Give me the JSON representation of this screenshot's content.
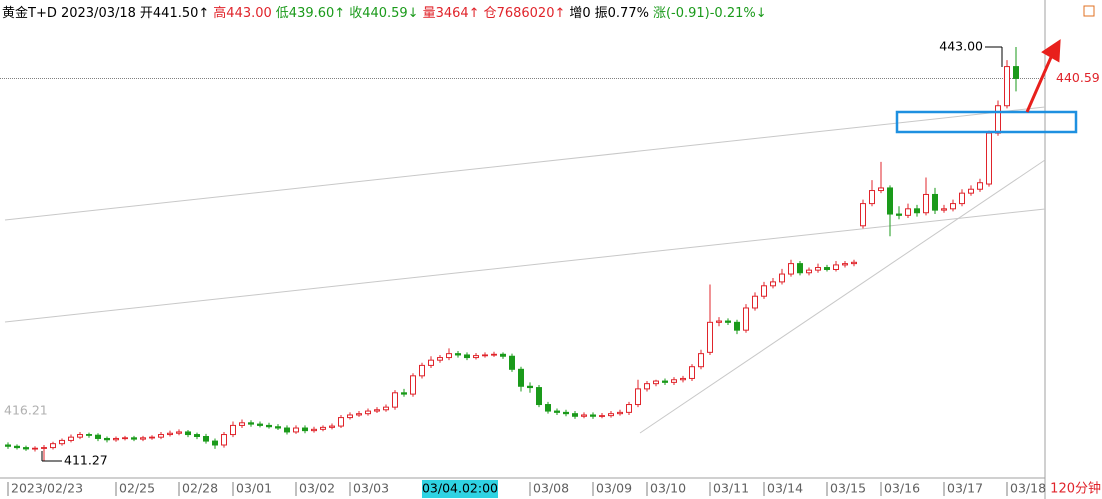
{
  "chart_data": {
    "type": "candlestick",
    "header": [
      {
        "text": "黄金T+D 2023/03/18",
        "color": "#000000"
      },
      {
        "text": "开441.50↑",
        "color": "#000000"
      },
      {
        "text": "高443.00",
        "color": "#e0242b"
      },
      {
        "text": "低439.60↑",
        "color": "#1a9a1a"
      },
      {
        "text": "收440.59↓",
        "color": "#1a9a1a"
      },
      {
        "text": "量3464↑",
        "color": "#e0242b"
      },
      {
        "text": "仓7686020↑",
        "color": "#e0242b"
      },
      {
        "text": "增0",
        "color": "#000000"
      },
      {
        "text": "振0.77%",
        "color": "#000000"
      },
      {
        "text": "涨(-0.91)-0.21%↓",
        "color": "#1a9a1a"
      }
    ],
    "period": "120分钟",
    "left_label": "416.21",
    "max_label": {
      "value": 443,
      "label": "443.00"
    },
    "min_label": 411.27,
    "ylim": [
      409.97,
      446.22
    ],
    "up_color": "#e0242b",
    "down_color": "#1a9a1a",
    "categories": [
      "2023/02/23",
      null,
      null,
      null,
      null,
      null,
      null,
      null,
      null,
      null,
      null,
      null,
      "02/25",
      null,
      null,
      null,
      null,
      null,
      null,
      "02/28",
      null,
      null,
      null,
      null,
      null,
      "03/01",
      null,
      null,
      null,
      null,
      null,
      null,
      "03/02",
      null,
      null,
      null,
      null,
      null,
      "03/03",
      null,
      null,
      null,
      null,
      null,
      null,
      null,
      null,
      null,
      null,
      null,
      "03/04.02:00",
      null,
      null,
      null,
      null,
      null,
      null,
      null,
      "03/08",
      null,
      null,
      null,
      null,
      null,
      null,
      "03/09",
      null,
      null,
      null,
      null,
      null,
      "03/10",
      null,
      null,
      null,
      null,
      null,
      null,
      "03/11",
      null,
      null,
      null,
      null,
      null,
      "03/14",
      null,
      null,
      null,
      null,
      null,
      null,
      "03/15",
      null,
      null,
      null,
      null,
      null,
      "03/16",
      null,
      null,
      null,
      null,
      null,
      null,
      "03/17",
      null,
      null,
      null,
      null,
      null,
      null,
      "03/18",
      null
    ],
    "open": [
      412.5,
      412.4,
      412.3,
      412.2,
      412.25,
      412.3,
      412.6,
      412.85,
      413.1,
      413.3,
      413.25,
      413.0,
      412.9,
      413.0,
      413.05,
      412.95,
      413.05,
      413.1,
      413.3,
      413.4,
      413.5,
      413.3,
      413.15,
      412.8,
      412.5,
      413.3,
      414.0,
      414.2,
      414.1,
      414.0,
      413.9,
      413.8,
      413.5,
      413.8,
      413.6,
      413.7,
      413.85,
      413.95,
      414.6,
      414.8,
      414.9,
      415.1,
      415.2,
      415.4,
      416.5,
      416.4,
      417.8,
      418.6,
      419.0,
      419.2,
      419.5,
      419.4,
      419.2,
      419.35,
      419.4,
      419.45,
      419.3,
      418.3,
      417.0,
      416.9,
      415.6,
      415.1,
      415.0,
      414.9,
      414.7,
      414.8,
      414.7,
      414.75,
      414.9,
      415.0,
      415.6,
      416.8,
      417.2,
      417.4,
      417.3,
      417.5,
      417.6,
      418.5,
      419.6,
      421.9,
      422.0,
      421.9,
      421.3,
      423.0,
      423.9,
      424.7,
      425.0,
      425.6,
      426.4,
      425.7,
      425.9,
      426.1,
      425.95,
      426.3,
      426.4,
      429.3,
      431.0,
      432.0,
      432.2,
      430.2,
      430.1,
      430.6,
      430.3,
      431.7,
      430.5,
      430.6,
      431.0,
      431.8,
      432.1,
      432.5,
      436.4,
      438.5,
      441.5
    ],
    "high": [
      412.7,
      412.55,
      412.45,
      412.4,
      412.5,
      412.75,
      413.0,
      413.3,
      413.5,
      413.45,
      413.4,
      413.15,
      413.15,
      413.2,
      413.2,
      413.2,
      413.25,
      413.5,
      413.6,
      413.7,
      413.65,
      413.45,
      413.35,
      413.0,
      413.5,
      414.3,
      414.45,
      414.4,
      414.3,
      414.2,
      414.1,
      414.0,
      414.0,
      414.0,
      413.9,
      414.0,
      414.15,
      414.8,
      415.0,
      415.1,
      415.3,
      415.4,
      415.6,
      416.7,
      416.8,
      418.0,
      418.8,
      419.3,
      419.4,
      419.9,
      419.7,
      419.6,
      419.55,
      419.6,
      419.65,
      419.6,
      419.5,
      418.5,
      417.3,
      417.1,
      415.8,
      415.3,
      415.2,
      415.1,
      415.0,
      415.0,
      414.95,
      415.1,
      415.2,
      415.8,
      417.5,
      417.4,
      417.5,
      417.6,
      417.7,
      417.8,
      418.7,
      419.8,
      424.8,
      422.3,
      422.2,
      422.1,
      423.3,
      424.2,
      425.0,
      425.3,
      426.0,
      426.7,
      426.6,
      426.1,
      426.4,
      426.3,
      426.6,
      426.6,
      426.7,
      431.3,
      432.8,
      434.2,
      432.4,
      430.8,
      431.0,
      430.9,
      433.0,
      432.2,
      430.9,
      431.3,
      432.1,
      432.4,
      432.9,
      436.6,
      438.9,
      442.0,
      443.0
    ],
    "low": [
      412.2,
      412.15,
      412.05,
      412.0,
      411.27,
      412.15,
      412.45,
      412.7,
      412.95,
      413.05,
      412.8,
      412.7,
      412.75,
      412.85,
      412.8,
      412.8,
      412.9,
      412.95,
      413.15,
      413.25,
      413.1,
      412.95,
      412.6,
      412.2,
      412.3,
      413.1,
      413.8,
      413.9,
      413.85,
      413.75,
      413.65,
      413.3,
      413.35,
      413.4,
      413.45,
      413.55,
      413.7,
      413.8,
      414.45,
      414.65,
      414.75,
      414.95,
      415.05,
      415.2,
      416.2,
      416.2,
      417.6,
      418.4,
      418.8,
      419.0,
      419.2,
      419.0,
      419.05,
      419.2,
      419.25,
      419.1,
      418.1,
      416.6,
      416.5,
      415.4,
      414.9,
      414.8,
      414.7,
      414.5,
      414.55,
      414.5,
      414.55,
      414.6,
      414.75,
      414.8,
      415.4,
      416.6,
      417.0,
      417.1,
      417.1,
      417.3,
      417.4,
      418.3,
      419.4,
      421.6,
      421.7,
      421.0,
      421.1,
      422.8,
      423.7,
      424.5,
      424.8,
      425.4,
      425.5,
      425.5,
      425.7,
      425.8,
      425.8,
      426.1,
      426.2,
      429.1,
      430.8,
      431.8,
      428.5,
      429.8,
      429.9,
      430.0,
      430.1,
      430.2,
      430.3,
      430.4,
      430.8,
      431.6,
      431.9,
      432.3,
      436.2,
      438.3,
      439.6
    ],
    "close": [
      412.4,
      412.3,
      412.2,
      412.25,
      412.3,
      412.6,
      412.85,
      413.1,
      413.3,
      413.25,
      413.0,
      412.9,
      413.0,
      413.05,
      412.95,
      413.05,
      413.1,
      413.3,
      413.4,
      413.5,
      413.3,
      413.15,
      412.8,
      412.5,
      413.3,
      414.0,
      414.2,
      414.1,
      414.0,
      413.9,
      413.8,
      413.5,
      413.8,
      413.6,
      413.7,
      413.85,
      413.95,
      414.6,
      414.8,
      414.9,
      415.1,
      415.2,
      415.4,
      416.5,
      416.4,
      417.8,
      418.6,
      419.0,
      419.2,
      419.5,
      419.4,
      419.2,
      419.35,
      419.4,
      419.45,
      419.3,
      418.3,
      417.0,
      416.9,
      415.6,
      415.1,
      415.0,
      414.9,
      414.7,
      414.8,
      414.7,
      414.75,
      414.9,
      415.0,
      415.6,
      416.8,
      417.2,
      417.4,
      417.3,
      417.5,
      417.6,
      418.5,
      419.5,
      421.9,
      422.0,
      421.9,
      421.3,
      423.0,
      423.9,
      424.7,
      425.0,
      425.6,
      426.4,
      425.7,
      425.9,
      426.1,
      425.95,
      426.3,
      426.4,
      426.5,
      431.0,
      432.0,
      432.2,
      430.2,
      430.1,
      430.6,
      430.3,
      431.7,
      430.5,
      430.6,
      431.0,
      431.8,
      432.1,
      432.6,
      436.4,
      438.5,
      441.5,
      440.59
    ]
  }
}
